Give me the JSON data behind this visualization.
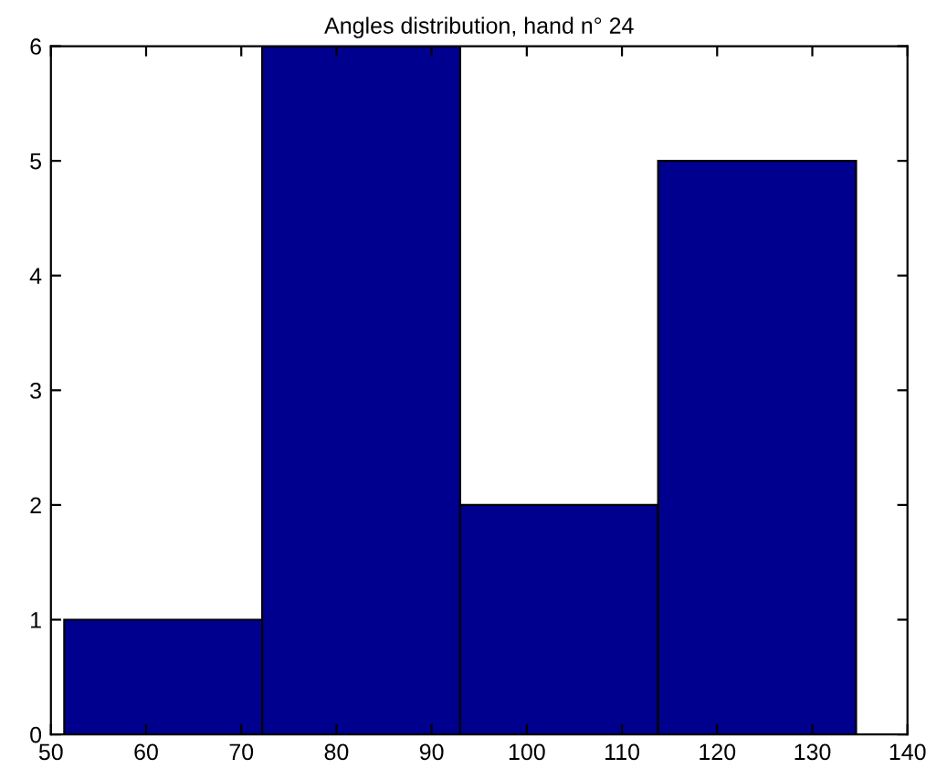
{
  "chart_data": {
    "type": "histogram",
    "title": "Angles distribution, hand n° 24",
    "bins": [
      51.4,
      72.2,
      93.0,
      113.8,
      134.6
    ],
    "values": [
      1,
      6,
      2,
      5
    ],
    "color": "#00008f",
    "xlim": [
      50,
      140
    ],
    "xticks": [
      50,
      60,
      70,
      80,
      90,
      100,
      110,
      120,
      130,
      140
    ],
    "ylim": [
      0,
      6
    ],
    "yticks": [
      0,
      1,
      2,
      3,
      4,
      5,
      6
    ],
    "grid": false
  }
}
